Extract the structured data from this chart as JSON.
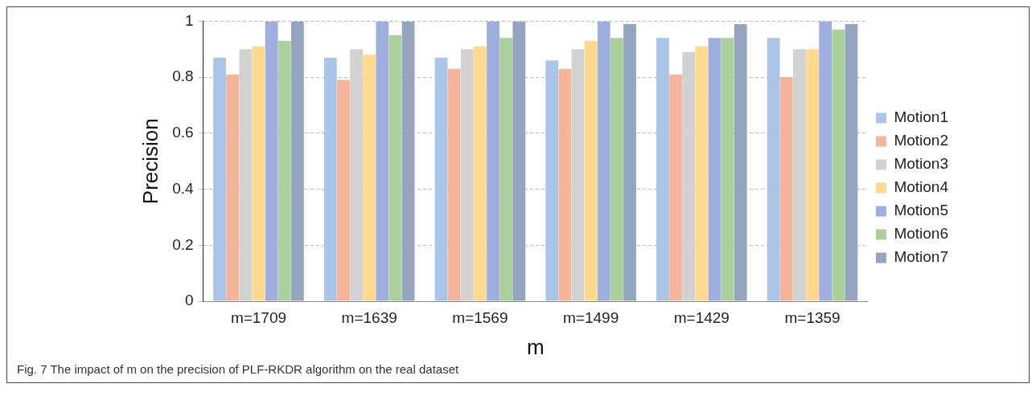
{
  "chart_data": {
    "type": "bar",
    "xlabel": "m",
    "ylabel": "Precision",
    "categories": [
      "m=1709",
      "m=1639",
      "m=1569",
      "m=1499",
      "m=1429",
      "m=1359"
    ],
    "series": [
      {
        "name": "Motion1",
        "color": "#aac5e8",
        "values": [
          0.87,
          0.87,
          0.87,
          0.86,
          0.94,
          0.94
        ]
      },
      {
        "name": "Motion2",
        "color": "#f5b59b",
        "values": [
          0.81,
          0.79,
          0.83,
          0.83,
          0.81,
          0.8
        ]
      },
      {
        "name": "Motion3",
        "color": "#d2d2d2",
        "values": [
          0.9,
          0.9,
          0.9,
          0.9,
          0.89,
          0.9
        ]
      },
      {
        "name": "Motion4",
        "color": "#fed98e",
        "values": [
          0.91,
          0.88,
          0.91,
          0.93,
          0.91,
          0.9
        ]
      },
      {
        "name": "Motion5",
        "color": "#9eaedf",
        "values": [
          1,
          1,
          1,
          1,
          0.94,
          1
        ]
      },
      {
        "name": "Motion6",
        "color": "#aad09c",
        "values": [
          0.93,
          0.95,
          0.94,
          0.94,
          0.94,
          0.97
        ]
      },
      {
        "name": "Motion7",
        "color": "#93a5bf",
        "values": [
          1,
          1,
          1,
          0.99,
          0.99,
          0.99
        ]
      }
    ],
    "ylim": [
      0,
      1
    ],
    "yticks": [
      0,
      0.2,
      0.4,
      0.6,
      0.8,
      1
    ],
    "grid": "y",
    "legend": "right",
    "annotations": [
      "Fig. 7 The impact of m on the precision of PLF-RKDR algorithm on the real dataset"
    ]
  }
}
